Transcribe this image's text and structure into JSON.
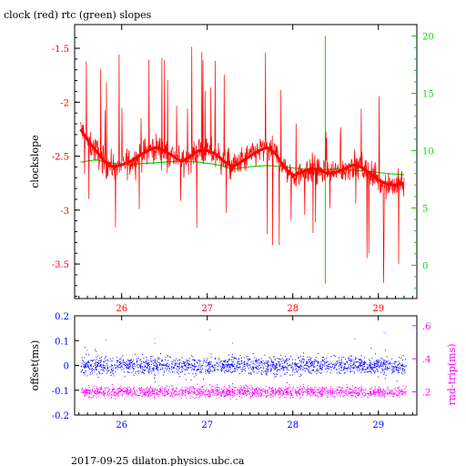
{
  "title": "clock (red) rtc (green) slopes",
  "footer": "2017-09-25  dilaton.physics.ubc.ca",
  "colors": {
    "red": "#ff0000",
    "green": "#00dd00",
    "blue": "#0000ff",
    "magenta": "#ff00ff",
    "black": "#000000"
  },
  "chart_data": [
    {
      "type": "line",
      "ylabel": "clockslope",
      "xlim": [
        25.45,
        29.45
      ],
      "ylim": [
        -3.82,
        -1.28
      ],
      "x_ticks": [
        26,
        27,
        28,
        29
      ],
      "y_ticks": [
        -3.5,
        -3,
        -2.5,
        -2,
        -1.5
      ],
      "y2lim": [
        -2.9,
        21
      ],
      "y2_ticks": [
        0,
        5,
        10,
        15,
        20
      ],
      "series": [
        {
          "color": "red",
          "axis": "left",
          "x": [
            25.52,
            25.6,
            25.7,
            25.8,
            25.9,
            26.0,
            26.1,
            26.2,
            26.3,
            26.4,
            26.5,
            26.6,
            26.7,
            26.8,
            26.9,
            27.0,
            27.1,
            27.2,
            27.3,
            27.4,
            27.5,
            27.6,
            27.7,
            27.8,
            27.9,
            28.0,
            28.1,
            28.2,
            28.3,
            28.4,
            28.5,
            28.6,
            28.7,
            28.8,
            28.9,
            29.0,
            29.1,
            29.2,
            29.3
          ],
          "y": [
            -2.25,
            -2.35,
            -2.45,
            -2.55,
            -2.6,
            -2.58,
            -2.55,
            -2.5,
            -2.45,
            -2.42,
            -2.45,
            -2.5,
            -2.55,
            -2.5,
            -2.45,
            -2.45,
            -2.48,
            -2.55,
            -2.6,
            -2.55,
            -2.5,
            -2.45,
            -2.42,
            -2.48,
            -2.6,
            -2.68,
            -2.65,
            -2.62,
            -2.62,
            -2.66,
            -2.65,
            -2.62,
            -2.58,
            -2.6,
            -2.66,
            -2.72,
            -2.76,
            -2.77,
            -2.75
          ]
        },
        {
          "color": "green",
          "axis": "right",
          "x": [
            25.52,
            25.7,
            25.9,
            26.1,
            26.3,
            26.5,
            26.7,
            26.9,
            27.1,
            27.3,
            27.5,
            27.7,
            27.9,
            28.1,
            28.3,
            28.5,
            28.7,
            28.9,
            29.1,
            29.3
          ],
          "y": [
            9.0,
            9.2,
            8.9,
            8.8,
            8.9,
            9.0,
            9.1,
            9.0,
            8.8,
            8.4,
            8.6,
            8.7,
            8.6,
            8.4,
            8.3,
            8.4,
            8.3,
            8.2,
            8.0,
            7.9
          ]
        }
      ]
    },
    {
      "type": "scatter",
      "ylabel": "offset(ms)",
      "y2label": "rnd-trip(ms)",
      "xlim": [
        25.45,
        29.45
      ],
      "ylim": [
        -0.2,
        0.2
      ],
      "x_ticks": [
        26,
        27,
        28,
        29
      ],
      "y_ticks": [
        -0.2,
        -0.1,
        0,
        0.1,
        0.2
      ],
      "y2lim": [
        0.06,
        0.66
      ],
      "y2_ticks": [
        0.2,
        0.4,
        0.6
      ],
      "series": [
        {
          "color": "blue",
          "axis": "left",
          "x_range": [
            25.52,
            29.32
          ],
          "y_center": 0.0,
          "y_spread": 0.035
        },
        {
          "color": "magenta",
          "axis": "right",
          "x_range": [
            25.52,
            29.32
          ],
          "y_center": 0.2,
          "y_spread": 0.035
        }
      ]
    }
  ]
}
